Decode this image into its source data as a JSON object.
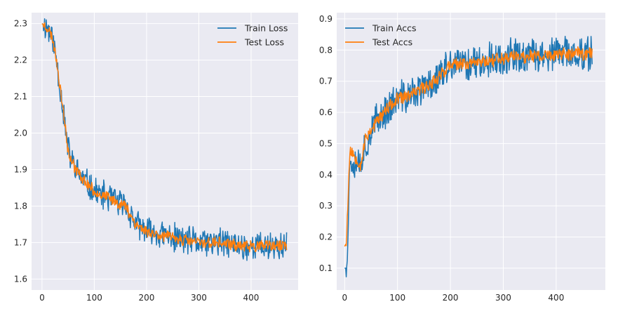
{
  "chart_data": [
    {
      "type": "line",
      "title": "",
      "xlabel": "",
      "ylabel": "",
      "xlim": [
        -20,
        490
      ],
      "ylim": [
        1.57,
        2.33
      ],
      "xticks": [
        0,
        100,
        200,
        300,
        400
      ],
      "xtick_labels": [
        "0",
        "100",
        "200",
        "300",
        "400"
      ],
      "yticks": [
        1.6,
        1.7,
        1.8,
        1.9,
        2.0,
        2.1,
        2.2,
        2.3
      ],
      "ytick_labels": [
        "1.6",
        "1.7",
        "1.8",
        "1.9",
        "2.0",
        "2.1",
        "2.2",
        "2.3"
      ],
      "grid": true,
      "legend_position": "top-right",
      "series": [
        {
          "name": "Train Loss",
          "color": "#1f77b4",
          "noise": 0.045,
          "seed": 11,
          "x": [
            0,
            10,
            20,
            28,
            35,
            42,
            48,
            55,
            65,
            80,
            100,
            130,
            160,
            180,
            200,
            230,
            260,
            300,
            340,
            380,
            420,
            450,
            468
          ],
          "values": [
            2.3,
            2.29,
            2.26,
            2.2,
            2.12,
            2.05,
            1.97,
            1.93,
            1.9,
            1.87,
            1.84,
            1.82,
            1.8,
            1.75,
            1.73,
            1.72,
            1.71,
            1.7,
            1.7,
            1.69,
            1.69,
            1.69,
            1.69
          ]
        },
        {
          "name": "Test Loss",
          "color": "#ff7f0e",
          "noise": 0.018,
          "seed": 23,
          "x": [
            0,
            10,
            20,
            28,
            35,
            42,
            48,
            55,
            65,
            80,
            100,
            130,
            160,
            180,
            200,
            230,
            260,
            300,
            340,
            380,
            420,
            450,
            468
          ],
          "values": [
            2.3,
            2.29,
            2.26,
            2.2,
            2.12,
            2.05,
            1.97,
            1.93,
            1.9,
            1.87,
            1.84,
            1.82,
            1.8,
            1.75,
            1.73,
            1.72,
            1.71,
            1.7,
            1.7,
            1.69,
            1.69,
            1.69,
            1.69
          ]
        }
      ]
    },
    {
      "type": "line",
      "title": "",
      "xlabel": "",
      "ylabel": "",
      "xlim": [
        -15,
        493
      ],
      "ylim": [
        0.03,
        0.92
      ],
      "xticks": [
        0,
        100,
        200,
        300,
        400
      ],
      "xtick_labels": [
        "0",
        "100",
        "200",
        "300",
        "400"
      ],
      "yticks": [
        0.1,
        0.2,
        0.3,
        0.4,
        0.5,
        0.6,
        0.7,
        0.8,
        0.9
      ],
      "ytick_labels": [
        "0.1",
        "0.2",
        "0.3",
        "0.4",
        "0.5",
        "0.6",
        "0.7",
        "0.8",
        "0.9"
      ],
      "grid": true,
      "legend_position": "top-left",
      "series": [
        {
          "name": "Train Accs",
          "color": "#1f77b4",
          "noise": 0.065,
          "seed": 37,
          "x": [
            0,
            3,
            6,
            10,
            20,
            30,
            40,
            60,
            80,
            100,
            130,
            160,
            180,
            200,
            240,
            280,
            320,
            360,
            400,
            440,
            468
          ],
          "values": [
            0.1,
            0.1,
            0.2,
            0.45,
            0.45,
            0.44,
            0.5,
            0.57,
            0.61,
            0.64,
            0.66,
            0.69,
            0.72,
            0.75,
            0.76,
            0.77,
            0.78,
            0.78,
            0.785,
            0.79,
            0.79
          ]
        },
        {
          "name": "Test Accs",
          "color": "#ff7f0e",
          "noise": 0.025,
          "seed": 53,
          "x": [
            0,
            3,
            6,
            10,
            20,
            30,
            40,
            60,
            80,
            100,
            130,
            160,
            180,
            200,
            240,
            280,
            320,
            360,
            400,
            440,
            468
          ],
          "values": [
            0.17,
            0.18,
            0.3,
            0.48,
            0.46,
            0.43,
            0.52,
            0.57,
            0.61,
            0.64,
            0.66,
            0.69,
            0.72,
            0.75,
            0.76,
            0.77,
            0.78,
            0.78,
            0.785,
            0.79,
            0.79
          ]
        }
      ]
    }
  ]
}
